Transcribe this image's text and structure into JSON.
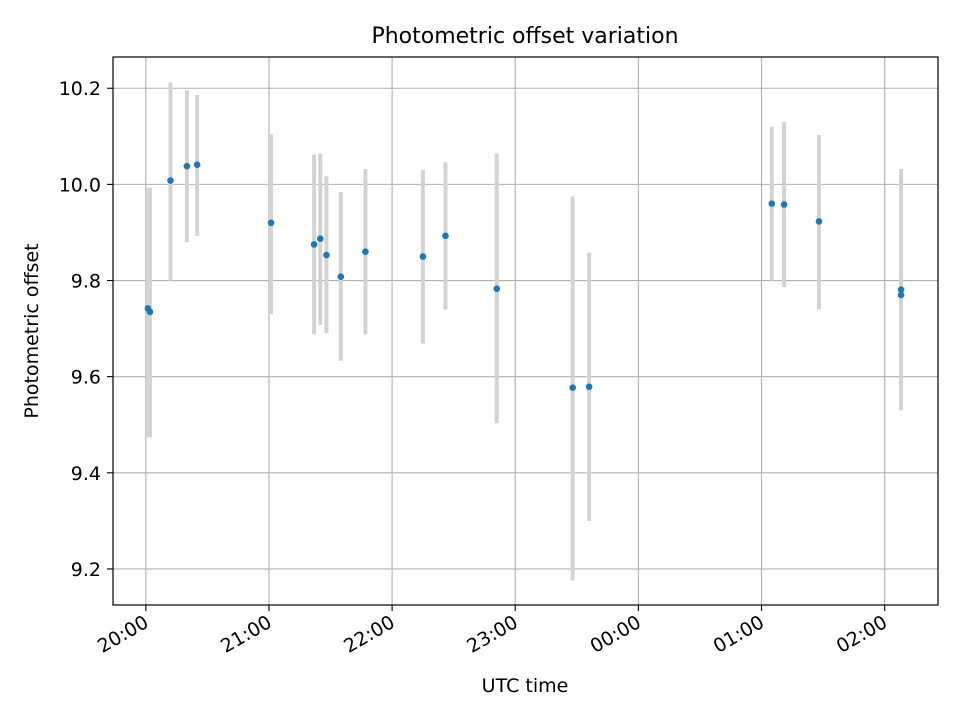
{
  "chart_data": {
    "type": "scatter",
    "title": "Photometric offset variation",
    "xlabel": "UTC time",
    "ylabel": "Photometric offset",
    "x_tick_labels": [
      "20:00",
      "21:00",
      "22:00",
      "23:00",
      "00:00",
      "01:00",
      "02:00"
    ],
    "x_ticks": [
      "20:00",
      "21:00",
      "22:00",
      "23:00",
      "24:00",
      "25:00",
      "26:00"
    ],
    "xlim": [
      "19:44",
      "26:26"
    ],
    "y_ticks": [
      9.2,
      9.4,
      9.6,
      9.8,
      10.0,
      10.2
    ],
    "y_tick_labels": [
      "9.2",
      "9.4",
      "9.6",
      "9.8",
      "10.0",
      "10.2"
    ],
    "ylim": [
      9.125,
      10.265
    ],
    "grid": true,
    "marker_color": "#1f77b4",
    "errorbar_color": "#d3d3d3",
    "points": [
      {
        "t": "20:01",
        "y": 9.742,
        "lo": 9.474,
        "hi": 9.993
      },
      {
        "t": "20:02",
        "y": 9.735,
        "lo": 9.474,
        "hi": 9.993
      },
      {
        "t": "20:12",
        "y": 10.008,
        "lo": 9.8,
        "hi": 10.212
      },
      {
        "t": "20:20",
        "y": 10.038,
        "lo": 9.88,
        "hi": 10.196
      },
      {
        "t": "20:25",
        "y": 10.041,
        "lo": 9.893,
        "hi": 10.186
      },
      {
        "t": "21:01",
        "y": 9.92,
        "lo": 9.73,
        "hi": 10.104
      },
      {
        "t": "21:22",
        "y": 9.875,
        "lo": 9.688,
        "hi": 10.062
      },
      {
        "t": "21:25",
        "y": 9.887,
        "lo": 9.708,
        "hi": 10.064
      },
      {
        "t": "21:28",
        "y": 9.853,
        "lo": 9.69,
        "hi": 10.017
      },
      {
        "t": "21:35",
        "y": 9.808,
        "lo": 9.633,
        "hi": 9.984
      },
      {
        "t": "21:47",
        "y": 9.86,
        "lo": 9.688,
        "hi": 10.032
      },
      {
        "t": "22:15",
        "y": 9.85,
        "lo": 9.669,
        "hi": 10.03
      },
      {
        "t": "22:26",
        "y": 9.893,
        "lo": 9.74,
        "hi": 10.046
      },
      {
        "t": "22:51",
        "y": 9.783,
        "lo": 9.503,
        "hi": 10.064
      },
      {
        "t": "23:28",
        "y": 9.577,
        "lo": 9.176,
        "hi": 9.975
      },
      {
        "t": "23:36",
        "y": 9.579,
        "lo": 9.3,
        "hi": 9.858
      },
      {
        "t": "25:05",
        "y": 9.96,
        "lo": 9.8,
        "hi": 10.12
      },
      {
        "t": "25:11",
        "y": 9.958,
        "lo": 9.786,
        "hi": 10.13
      },
      {
        "t": "25:28",
        "y": 9.923,
        "lo": 9.74,
        "hi": 10.103
      },
      {
        "t": "26:08",
        "y": 9.781,
        "lo": 9.53,
        "hi": 10.032
      },
      {
        "t": "26:08",
        "y": 9.77,
        "lo": 9.545,
        "hi": 9.995
      }
    ]
  }
}
